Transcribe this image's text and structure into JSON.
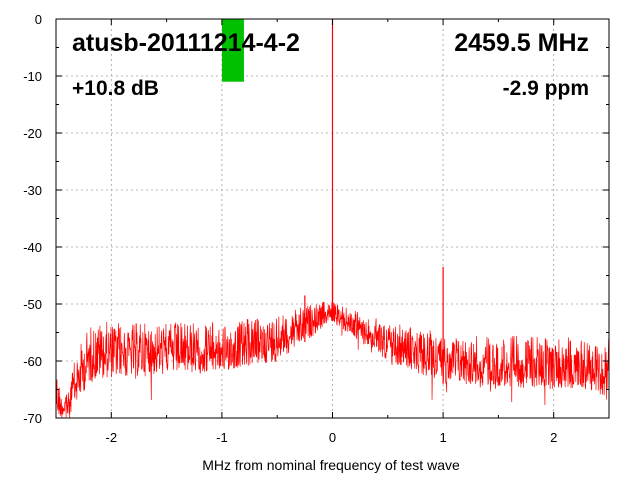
{
  "chart_data": {
    "type": "line",
    "title": "atusb-20111214-4-2",
    "frequency_label": "2459.5 MHz",
    "gain_label": "+10.8 dB",
    "ppm_label": "-2.9 ppm",
    "xlabel": "MHz from nominal frequency of test wave",
    "ylabel": "",
    "xlim": [
      -2.5,
      2.5
    ],
    "ylim": [
      -70,
      0
    ],
    "x_ticks": [
      -2,
      -1,
      0,
      1,
      2
    ],
    "y_ticks": [
      0,
      -10,
      -20,
      -30,
      -40,
      -50,
      -60,
      -70
    ],
    "grid": true,
    "series": [
      {
        "color": "#ff0000",
        "envelope": {
          "x": [
            -2.5,
            -2.45,
            -2.4,
            -2.3,
            -2.2,
            -2.1,
            -2.0,
            -1.5,
            -1.0,
            -0.5,
            -0.2,
            -0.05,
            0.0,
            0.05,
            0.2,
            0.5,
            1.0,
            1.5,
            2.0,
            2.3,
            2.5
          ],
          "upper": [
            -60,
            -66,
            -64,
            -58,
            -53.5,
            -53,
            -53,
            -53,
            -53,
            -52,
            -50,
            -49.5,
            -49.5,
            -50,
            -51,
            -53,
            -55,
            -55.5,
            -55.5,
            -56,
            -56
          ],
          "lower": [
            -70,
            -70,
            -70,
            -67,
            -64,
            -63,
            -63,
            -62.5,
            -62,
            -60,
            -56,
            -53.5,
            -53,
            -54,
            -56,
            -60,
            -64,
            -64.5,
            -65,
            -65,
            -67
          ]
        },
        "peaks": [
          {
            "x": 0.0,
            "y": 0.0
          },
          {
            "x": 0.0,
            "y": -44.0
          },
          {
            "x": 1.0,
            "y": -43.5
          },
          {
            "x": -0.25,
            "y": -48.5
          }
        ]
      }
    ],
    "marker": {
      "color": "#00c000",
      "x": -0.9,
      "y_top": 0,
      "y_bottom": -11
    }
  }
}
